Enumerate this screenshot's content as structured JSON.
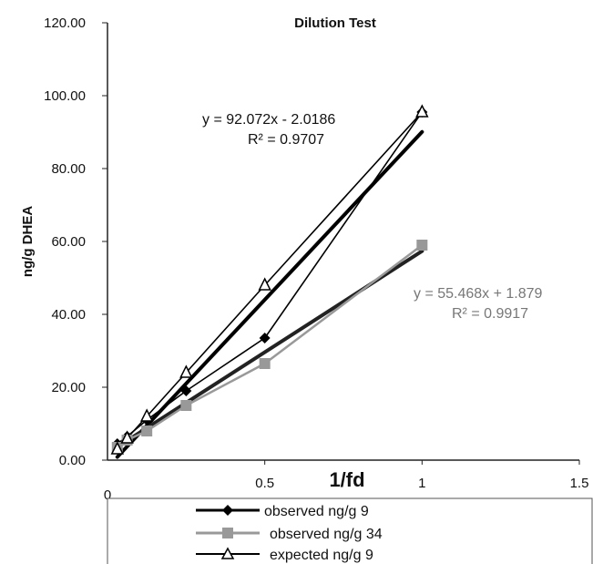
{
  "chart_data": {
    "type": "line",
    "title": "Dilution Test",
    "xlabel": "1/fd",
    "ylabel": "ng/g  DHEA",
    "xlim": [
      0,
      1.5
    ],
    "ylim": [
      0,
      120
    ],
    "x_ticks": [
      "0",
      "0.5",
      "1",
      "1.5"
    ],
    "y_ticks": [
      "0.00",
      "20.00",
      "40.00",
      "60.00",
      "80.00",
      "100.00",
      "120.00"
    ],
    "series": [
      {
        "name": "observed ng/g 9",
        "color": "#000000",
        "marker": "diamond",
        "points": [
          [
            0.03125,
            4.5
          ],
          [
            0.0625,
            6.5
          ],
          [
            0.125,
            11.0
          ],
          [
            0.25,
            19.0
          ],
          [
            0.5,
            33.5
          ],
          [
            1.0,
            95.5
          ]
        ]
      },
      {
        "name": "observed ng/g 34",
        "color": "#999999",
        "marker": "square",
        "points": [
          [
            0.03125,
            3.5
          ],
          [
            0.0625,
            5.5
          ],
          [
            0.125,
            8.0
          ],
          [
            0.25,
            15.0
          ],
          [
            0.5,
            26.5
          ],
          [
            1.0,
            59.0
          ]
        ]
      },
      {
        "name": "expected ng/g 9",
        "color": "#000000",
        "marker": "triangle",
        "points": [
          [
            0.03125,
            3.0
          ],
          [
            0.0625,
            6.0
          ],
          [
            0.125,
            12.0
          ],
          [
            0.25,
            24.0
          ],
          [
            0.5,
            48.0
          ],
          [
            1.0,
            95.5
          ]
        ]
      }
    ],
    "trendlines": [
      {
        "series": "observed ng/g 9",
        "slope": 92.072,
        "intercept": -2.0186,
        "x_range": [
          0.03125,
          1.0
        ],
        "color": "#000000"
      },
      {
        "series": "observed ng/g 34",
        "slope": 55.468,
        "intercept": 1.879,
        "x_range": [
          0.03125,
          1.0
        ],
        "color": "#222222"
      }
    ],
    "annotations": [
      {
        "equation": "y = 92.072x - 2.0186",
        "r2": "R² = 0.9707",
        "color": "#111111"
      },
      {
        "equation": "y = 55.468x + 1.879",
        "r2": "R² = 0.9917",
        "color": "#777777"
      }
    ],
    "legend_position": "bottom",
    "grid": false
  }
}
